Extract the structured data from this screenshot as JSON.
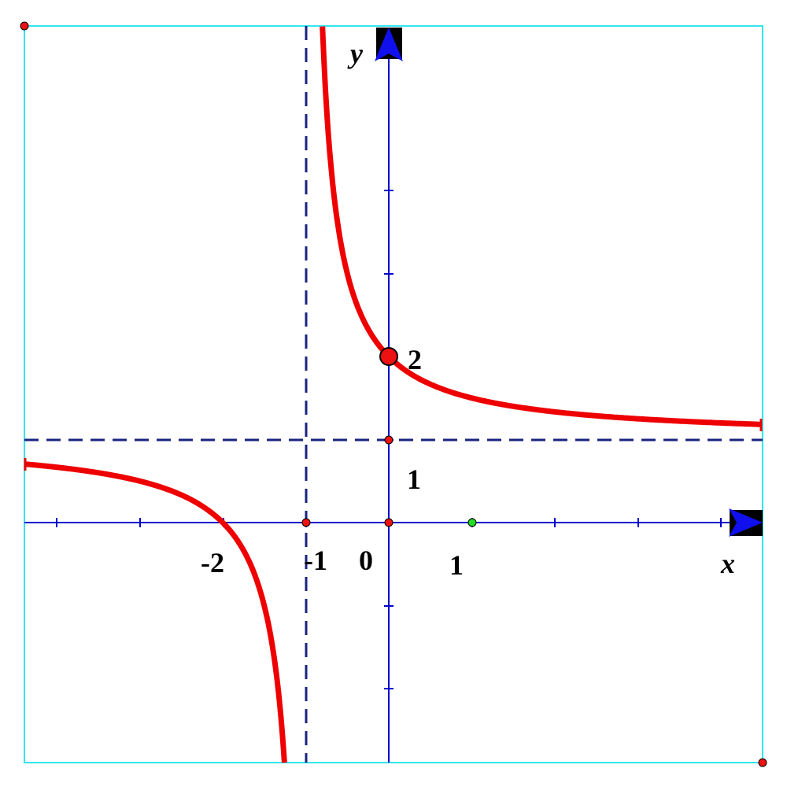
{
  "axes": {
    "x_label": "x",
    "y_label": "y"
  },
  "labels": {
    "y_intercept": "2",
    "horizontal_asymptote": "1",
    "x_intercept": "-2",
    "vertical_asymptote": "-1",
    "origin": "0",
    "x_unit": "1"
  }
}
